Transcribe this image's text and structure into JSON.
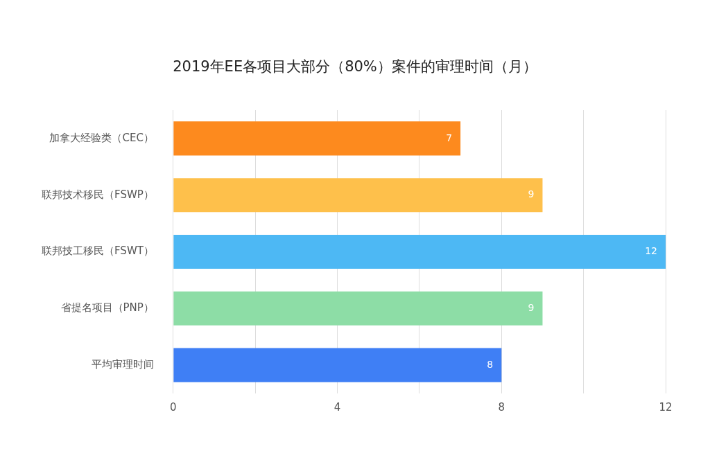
{
  "chart_data": {
    "type": "bar",
    "orientation": "horizontal",
    "title": "2019年EE各项目大部分（80%）案件的审理时间（月）",
    "categories": [
      "加拿大经验类（CEC）",
      "联邦技术移民（FSWP）",
      "联邦技工移民（FSWT）",
      "省提名项目（PNP）",
      "平均审理时间"
    ],
    "values": [
      7,
      9,
      12,
      9,
      8
    ],
    "colors": [
      "#fd8a1e",
      "#fec04b",
      "#4db8f4",
      "#8ddda6",
      "#3f7ff5"
    ],
    "xlim": [
      0,
      12
    ],
    "xticks": [
      0,
      {
        "value": 2,
        "label": null
      },
      4,
      {
        "value": 6,
        "label": null
      },
      8,
      {
        "value": 10,
        "label": null
      },
      12
    ],
    "grid": "x",
    "data_labels": true,
    "legend": false
  }
}
